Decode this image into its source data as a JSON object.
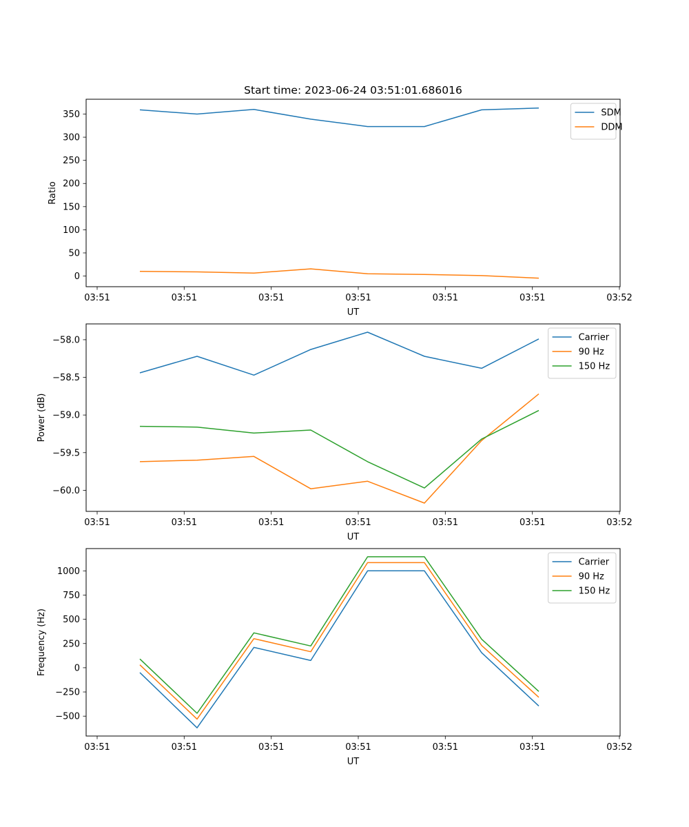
{
  "title": "Start time: 2023-06-24 03:51:01.686016",
  "colors": {
    "blue": "#1f77b4",
    "orange": "#ff7f0e",
    "green": "#2ca02c"
  },
  "chart_data": [
    {
      "type": "line",
      "xlabel": "UT",
      "ylabel": "Ratio",
      "x_tick_labels": [
        "03:51",
        "03:51",
        "03:51",
        "03:51",
        "03:51",
        "03:51",
        "03:52"
      ],
      "y_ticks": [
        0,
        50,
        100,
        150,
        200,
        250,
        300,
        350
      ],
      "y_tick_labels": [
        "0",
        "50",
        "100",
        "150",
        "200",
        "250",
        "300",
        "350"
      ],
      "ylim": [
        -23,
        382
      ],
      "legend_position": "top-right",
      "series": [
        {
          "name": "SDM",
          "color": "#1f77b4",
          "values": [
            359,
            350,
            360,
            339,
            323,
            323,
            359,
            363
          ]
        },
        {
          "name": "DDM",
          "color": "#ff7f0e",
          "values": [
            10,
            9,
            6.5,
            15.5,
            5,
            3.5,
            1,
            -4.5
          ]
        }
      ]
    },
    {
      "type": "line",
      "xlabel": "UT",
      "ylabel": "Power (dB)",
      "x_tick_labels": [
        "03:51",
        "03:51",
        "03:51",
        "03:51",
        "03:51",
        "03:51",
        "03:52"
      ],
      "y_ticks": [
        -60.0,
        -59.5,
        -59.0,
        -58.5,
        -58.0
      ],
      "y_tick_labels": [
        "−60.0",
        "−59.5",
        "−59.0",
        "−58.5",
        "−58.0"
      ],
      "ylim": [
        -60.28,
        -57.79
      ],
      "legend_position": "top-right",
      "series": [
        {
          "name": "Carrier",
          "color": "#1f77b4",
          "values": [
            -58.44,
            -58.22,
            -58.47,
            -58.13,
            -57.9,
            -58.22,
            -58.38,
            -57.99
          ]
        },
        {
          "name": "90 Hz",
          "color": "#ff7f0e",
          "values": [
            -59.62,
            -59.6,
            -59.55,
            -59.98,
            -59.88,
            -60.17,
            -59.34,
            -58.72
          ]
        },
        {
          "name": "150 Hz",
          "color": "#2ca02c",
          "values": [
            -59.15,
            -59.16,
            -59.24,
            -59.2,
            -59.62,
            -59.97,
            -59.32,
            -58.94
          ]
        }
      ]
    },
    {
      "type": "line",
      "xlabel": "UT",
      "ylabel": "Frequency (Hz)",
      "x_tick_labels": [
        "03:51",
        "03:51",
        "03:51",
        "03:51",
        "03:51",
        "03:51",
        "03:52"
      ],
      "y_ticks": [
        -500,
        -250,
        0,
        250,
        500,
        750,
        1000
      ],
      "y_tick_labels": [
        "−500",
        "−250",
        "0",
        "250",
        "500",
        "750",
        "1000"
      ],
      "ylim": [
        -705,
        1230
      ],
      "legend_position": "top-right",
      "series": [
        {
          "name": "Carrier",
          "color": "#1f77b4",
          "values": [
            -50,
            -620,
            210,
            75,
            1000,
            1000,
            155,
            -395
          ]
        },
        {
          "name": "90 Hz",
          "color": "#ff7f0e",
          "values": [
            30,
            -530,
            300,
            165,
            1085,
            1085,
            230,
            -305
          ]
        },
        {
          "name": "150 Hz",
          "color": "#2ca02c",
          "values": [
            90,
            -470,
            360,
            225,
            1145,
            1145,
            295,
            -245
          ]
        }
      ]
    }
  ]
}
